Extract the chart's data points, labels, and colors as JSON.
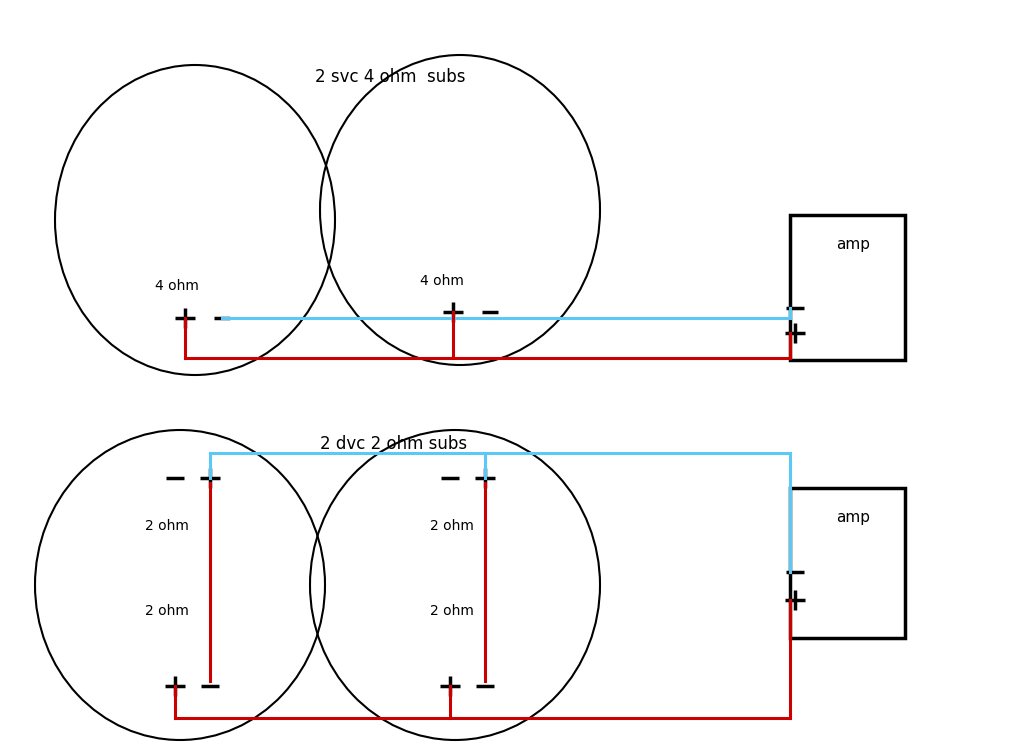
{
  "bg_color": "#ffffff",
  "title1": "2 svc 4 ohm  subs",
  "title2": "2 dvc 2 ohm subs",
  "blue": "#5bc8f5",
  "red": "#cc0000",
  "black": "#000000",
  "amp_label": "amp"
}
